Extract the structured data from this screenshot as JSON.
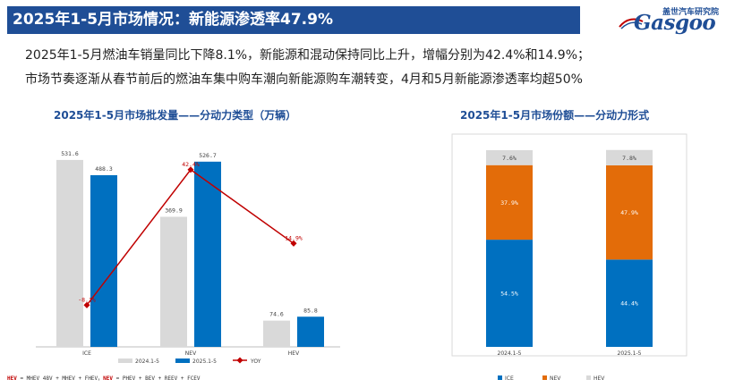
{
  "header": {
    "title": "2025年1-5月市场情况：新能源渗透率47.9%",
    "logo_cn": "盖世汽车研究院",
    "logo_en": "Gasgoo"
  },
  "description": {
    "line1": "2025年1-5月燃油车销量同比下降8.1%，新能源和混动保持同比上升，增幅分别为42.4%和14.9%；",
    "line2": "市场节奏逐渐从春节前后的燃油车集中购车潮向新能源购车潮转变，4月和5月新能源渗透率均超50%"
  },
  "colors": {
    "header_bg": "#1f4e96",
    "bar_2024": "#d9d9d9",
    "bar_2025": "#0070c0",
    "yoy_line": "#c00000",
    "ice": "#0070c0",
    "nev": "#e36c09",
    "hev": "#d9d9d9"
  },
  "footnote": {
    "hev_label": "HEV",
    "hev_def": " = MHEV 48V + MHEV + FHEV，",
    "nev_label": "NEV",
    "nev_def": " = PHEV + BEV + REEV + FCEV"
  },
  "chart_data": [
    {
      "type": "bar",
      "title": "2025年1-5月市场批发量——分动力类型（万辆）",
      "categories": [
        "ICE",
        "NEV",
        "HEV"
      ],
      "series": [
        {
          "name": "2024.1-5",
          "values": [
            531.6,
            369.9,
            74.6
          ],
          "labels": [
            "531.6",
            "369.9",
            "74.6"
          ]
        },
        {
          "name": "2025.1-5",
          "values": [
            488.3,
            526.7,
            85.8
          ],
          "labels": [
            "488.3",
            "526.7",
            "85.8"
          ]
        }
      ],
      "line_series": {
        "name": "YOY",
        "values": [
          -8.1,
          42.4,
          14.9
        ],
        "labels": [
          "-8.1%",
          "42.4%",
          "14.9%"
        ]
      },
      "ylim": [
        0,
        600
      ],
      "yoy_lim": [
        -20,
        60
      ],
      "legend": "bottom",
      "grid": false
    },
    {
      "type": "bar",
      "stacked": true,
      "title": "2025年1-5月市场份额——分动力形式",
      "categories": [
        "2024.1-5",
        "2025.1-5"
      ],
      "series": [
        {
          "name": "ICE",
          "values": [
            54.5,
            44.4
          ],
          "labels": [
            "54.5%",
            "44.4%"
          ]
        },
        {
          "name": "NEV",
          "values": [
            37.9,
            47.9
          ],
          "labels": [
            "37.9%",
            "47.9%"
          ]
        },
        {
          "name": "HEV",
          "values": [
            7.6,
            7.8
          ],
          "labels": [
            "7.6%",
            "7.8%"
          ]
        }
      ],
      "ylim": [
        0,
        100
      ],
      "legend": "bottom",
      "grid": false
    }
  ]
}
